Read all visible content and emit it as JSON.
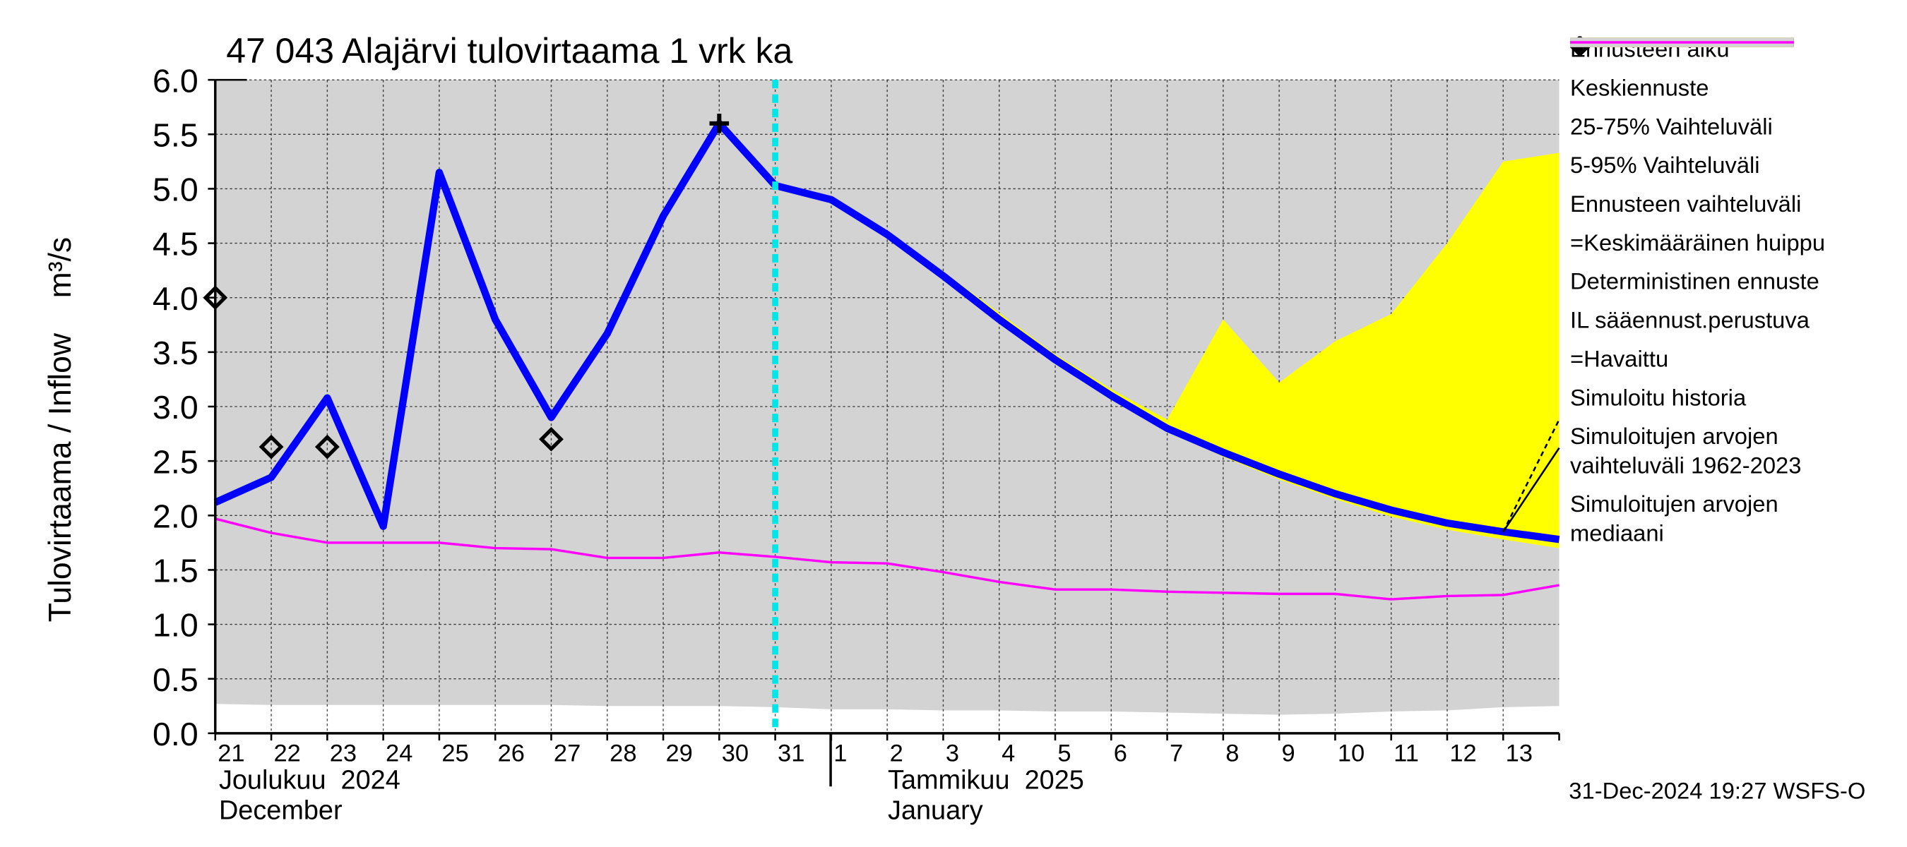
{
  "chart_data": {
    "type": "line",
    "title": "47 043 Alajärvi tulovirtaama 1 vrk ka",
    "ylabel": "Tulovirtaama / Inflow    m³/s",
    "footer": "31-Dec-2024 19:27 WSFS-O",
    "categories": [
      "21",
      "22",
      "23",
      "24",
      "25",
      "26",
      "27",
      "28",
      "29",
      "30",
      "31",
      "1",
      "2",
      "3",
      "4",
      "5",
      "6",
      "7",
      "8",
      "9",
      "10",
      "11",
      "12",
      "13",
      null
    ],
    "months": [
      {
        "name": "Joulukuu  2024",
        "name_en": "December"
      },
      {
        "name": "Tammikuu  2025",
        "name_en": "January"
      }
    ],
    "ylim": [
      0,
      6
    ],
    "yticks": [
      {
        "value": 0,
        "label": "0.0"
      },
      {
        "value": 0.5,
        "label": "0.5"
      },
      {
        "value": 1,
        "label": "1.0"
      },
      {
        "value": 1.5,
        "label": "1.5"
      },
      {
        "value": 2,
        "label": "2.0"
      },
      {
        "value": 2.5,
        "label": "2.5"
      },
      {
        "value": 3,
        "label": "3.0"
      },
      {
        "value": 3.5,
        "label": "3.5"
      },
      {
        "value": 4,
        "label": "4.0"
      },
      {
        "value": 4.5,
        "label": "4.5"
      },
      {
        "value": 5,
        "label": "5.0"
      },
      {
        "value": 5.5,
        "label": "5.5"
      },
      {
        "value": 6,
        "label": "6.0"
      }
    ],
    "grid": true,
    "series": [
      {
        "name": "Ennusteen alku",
        "kind": "vline",
        "color": "#00e5e5",
        "at": "31"
      },
      {
        "name": "Keskiennuste",
        "kind": "line",
        "color": "#0000ff",
        "width": 6,
        "values": [
          null,
          null,
          null,
          null,
          null,
          null,
          null,
          null,
          null,
          null,
          5.03,
          4.9,
          4.58,
          4.2,
          3.8,
          3.43,
          3.1,
          2.8,
          2.58,
          2.38,
          2.2,
          2.05,
          1.93,
          1.85,
          1.78
        ]
      },
      {
        "name": "25-75% Vaihteluväli",
        "kind": "band",
        "color": "#00dd00",
        "low": [
          null,
          null,
          null,
          null,
          null,
          null,
          null,
          null,
          null,
          null,
          5.02,
          4.89,
          4.57,
          4.19,
          3.79,
          3.42,
          3.09,
          2.79,
          2.56,
          2.36,
          2.18,
          2.02,
          1.9,
          1.82,
          1.74
        ],
        "high": [
          null,
          null,
          null,
          null,
          null,
          null,
          null,
          null,
          null,
          null,
          5.04,
          4.91,
          4.59,
          4.21,
          3.81,
          3.44,
          3.11,
          2.82,
          2.61,
          2.42,
          2.26,
          2.13,
          2.03,
          1.97,
          2.0
        ]
      },
      {
        "name": "5-95% Vaihteluväli",
        "kind": "band",
        "color": "#ff0000",
        "low": [
          null,
          null,
          null,
          null,
          null,
          null,
          null,
          null,
          null,
          null,
          5.02,
          4.88,
          4.56,
          4.18,
          3.78,
          3.41,
          3.08,
          2.78,
          2.55,
          2.34,
          2.16,
          2.0,
          1.88,
          1.79,
          1.71
        ],
        "high": [
          null,
          null,
          null,
          null,
          null,
          null,
          null,
          null,
          null,
          null,
          5.04,
          4.92,
          4.6,
          4.22,
          3.83,
          3.46,
          3.13,
          2.85,
          3.3,
          2.77,
          2.78,
          2.83,
          3.02,
          2.98,
          2.9
        ]
      },
      {
        "name": "Ennusteen vaihteluväli",
        "kind": "band",
        "color": "#ffff00",
        "low": [
          null,
          null,
          null,
          null,
          null,
          null,
          null,
          null,
          null,
          null,
          5.02,
          4.88,
          4.56,
          4.18,
          3.78,
          3.41,
          3.08,
          2.78,
          2.54,
          2.33,
          2.15,
          1.99,
          1.87,
          1.78,
          1.7
        ],
        "high": [
          null,
          null,
          null,
          null,
          null,
          null,
          null,
          null,
          null,
          null,
          5.04,
          4.93,
          4.61,
          4.24,
          3.86,
          3.48,
          3.16,
          2.88,
          3.8,
          3.22,
          3.6,
          3.85,
          4.5,
          5.25,
          5.33
        ]
      },
      {
        "name": "=Keskimääräinen huippu",
        "kind": "marker",
        "marker": "plus",
        "color": "#000000",
        "values": [
          null,
          null,
          null,
          null,
          null,
          null,
          null,
          null,
          null,
          5.6,
          null,
          null,
          null,
          null,
          null,
          null,
          null,
          null,
          null,
          null,
          null,
          null,
          null,
          null,
          null
        ]
      },
      {
        "name": "Deterministinen ennuste",
        "kind": "line",
        "color": "#000000",
        "width": 1.5,
        "values": [
          null,
          null,
          null,
          null,
          null,
          null,
          null,
          null,
          null,
          null,
          null,
          null,
          null,
          null,
          null,
          null,
          null,
          null,
          null,
          null,
          null,
          null,
          null,
          1.85,
          2.62
        ]
      },
      {
        "name": "IL sääennust.perustuva",
        "kind": "line",
        "color": "#000000",
        "width": 1.5,
        "dashed": true,
        "values": [
          null,
          null,
          null,
          null,
          null,
          null,
          null,
          null,
          null,
          null,
          null,
          null,
          null,
          null,
          null,
          null,
          null,
          null,
          null,
          null,
          null,
          null,
          null,
          1.85,
          2.88
        ]
      },
      {
        "name": "=Havaittu",
        "kind": "marker",
        "marker": "diamond",
        "color": "#000000",
        "values": [
          4.0,
          2.63,
          2.63,
          null,
          null,
          null,
          2.7,
          null,
          null,
          null,
          null,
          null,
          null,
          null,
          null,
          null,
          null,
          null,
          null,
          null,
          null,
          null,
          null,
          null,
          null
        ]
      },
      {
        "name": "Simuloitu historia",
        "kind": "line",
        "color": "#0000ff",
        "width": 6,
        "values": [
          2.12,
          2.35,
          3.08,
          1.9,
          5.15,
          3.8,
          2.9,
          3.67,
          4.75,
          5.6,
          5.03,
          null,
          null,
          null,
          null,
          null,
          null,
          null,
          null,
          null,
          null,
          null,
          null,
          null,
          null
        ]
      },
      {
        "name": "Simuloitujen arvojen vaihteluväli 1962-2023",
        "kind": "band",
        "color": "#d3d3d3",
        "low": [
          0.27,
          0.26,
          0.26,
          0.26,
          0.26,
          0.26,
          0.26,
          0.25,
          0.25,
          0.25,
          0.24,
          0.22,
          0.22,
          0.21,
          0.21,
          0.2,
          0.2,
          0.19,
          0.18,
          0.17,
          0.18,
          0.2,
          0.21,
          0.24,
          0.25
        ],
        "high": [
          6,
          6,
          6,
          6,
          6,
          6,
          6,
          6,
          6,
          6,
          6,
          6,
          6,
          6,
          6,
          6,
          6,
          6,
          6,
          6,
          6,
          6,
          6,
          6,
          6
        ]
      },
      {
        "name": "Simuloitujen arvojen mediaani",
        "kind": "line",
        "color": "#ff00ff",
        "width": 2,
        "values": [
          1.97,
          1.84,
          1.75,
          1.75,
          1.75,
          1.7,
          1.69,
          1.61,
          1.61,
          1.66,
          1.62,
          1.57,
          1.56,
          1.48,
          1.39,
          1.32,
          1.32,
          1.3,
          1.29,
          1.28,
          1.28,
          1.23,
          1.26,
          1.27,
          1.36
        ]
      }
    ]
  }
}
